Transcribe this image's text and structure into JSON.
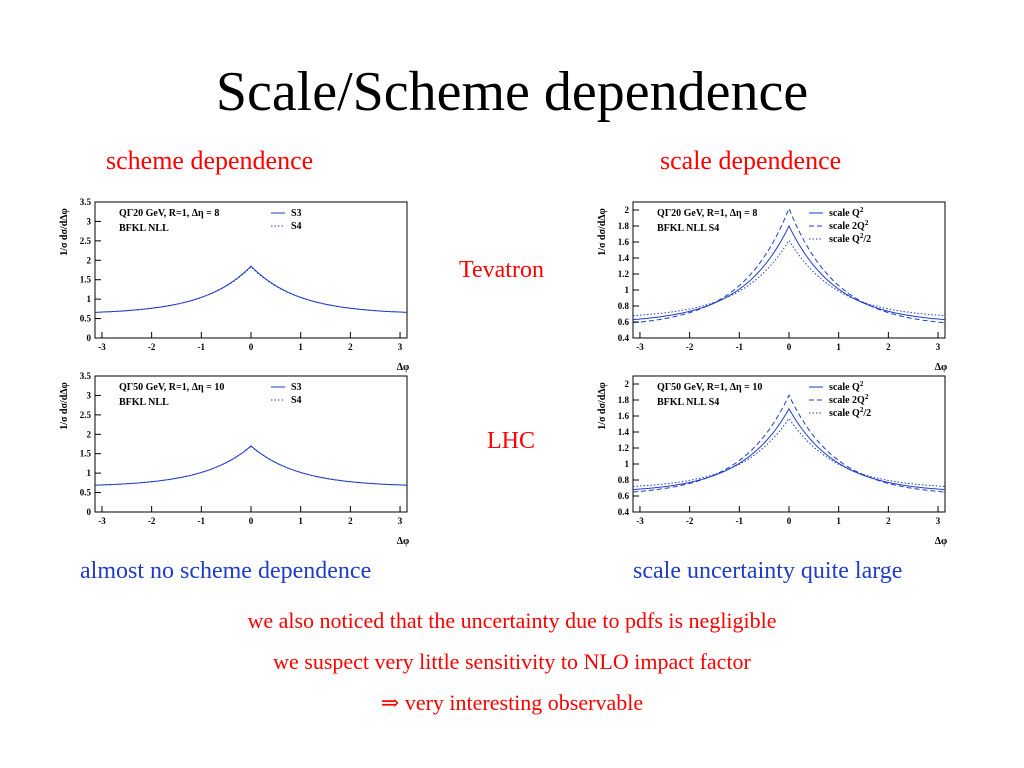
{
  "slide": {
    "title": "Scale/Scheme dependence",
    "left_heading": "scheme dependence",
    "right_heading": "scale dependence",
    "row_labels": [
      "Tevatron",
      "LHC"
    ],
    "left_conclusion": "almost no scheme dependence",
    "right_conclusion": "scale uncertainty quite large",
    "bottom_lines": [
      "we also noticed that the uncertainty due to pdfs is negligible",
      "we suspect very little sensitivity to NLO impact factor",
      "⇒ very interesting observable"
    ]
  },
  "colors": {
    "title": "#000000",
    "heading": "#ff0000",
    "conclusion": "#1f3cc8",
    "curve": "#1f3cc8"
  },
  "chart_data": [
    {
      "type": "line",
      "ylabel": "1/σ dσ/dΔφ",
      "xlabel": "Δφ",
      "xlim": [
        -3.14,
        3.14
      ],
      "ylim": [
        0,
        3.5
      ],
      "xticks": [
        "-3",
        "-2",
        "-1",
        "0",
        "1",
        "2",
        "3"
      ],
      "yticks": [
        "0",
        "0.5",
        "1",
        "1.5",
        "2",
        "2.5",
        "3",
        "3.5"
      ],
      "annotation": [
        "QΓ20 GeV, R=1, Δη = 8",
        "BFKL NLL"
      ],
      "legend_position": "top-right",
      "series": [
        {
          "name": "S3",
          "style": "solid",
          "peak": 1.85,
          "edge": 0.66
        },
        {
          "name": "S4",
          "style": "dotted",
          "peak": 1.83,
          "edge": 0.66
        }
      ]
    },
    {
      "type": "line",
      "ylabel": "1/σ dσ/dΔφ",
      "xlabel": "Δφ",
      "xlim": [
        -3.14,
        3.14
      ],
      "ylim": [
        0.4,
        2.1
      ],
      "xticks": [
        "-3",
        "-2",
        "-1",
        "0",
        "1",
        "2",
        "3"
      ],
      "yticks": [
        "0.4",
        "0.6",
        "0.8",
        "1",
        "1.2",
        "1.4",
        "1.6",
        "1.8",
        "2"
      ],
      "annotation": [
        "QΓ20 GeV, R=1, Δη = 8",
        "BFKL NLL S4"
      ],
      "legend_position": "top-right",
      "series": [
        {
          "name": "scale Q2",
          "style": "solid",
          "peak": 1.8,
          "edge": 0.63
        },
        {
          "name": "scale 2Q2",
          "style": "dashed",
          "peak": 2.02,
          "edge": 0.59
        },
        {
          "name": "scale Q2/2",
          "style": "dotted",
          "peak": 1.62,
          "edge": 0.68
        }
      ]
    },
    {
      "type": "line",
      "ylabel": "1/σ dσ/dΔφ",
      "xlabel": "Δφ",
      "xlim": [
        -3.14,
        3.14
      ],
      "ylim": [
        0,
        3.5
      ],
      "xticks": [
        "-3",
        "-2",
        "-1",
        "0",
        "1",
        "2",
        "3"
      ],
      "yticks": [
        "0",
        "0.5",
        "1",
        "1.5",
        "2",
        "2.5",
        "3",
        "3.5"
      ],
      "annotation": [
        "QΓ50 GeV, R=1, Δη = 10",
        "BFKL NLL"
      ],
      "legend_position": "top-right",
      "series": [
        {
          "name": "S3",
          "style": "solid",
          "peak": 1.7,
          "edge": 0.69
        },
        {
          "name": "S4",
          "style": "dotted",
          "peak": 1.69,
          "edge": 0.69
        }
      ]
    },
    {
      "type": "line",
      "ylabel": "1/σ dσ/dΔφ",
      "xlabel": "Δφ",
      "xlim": [
        -3.14,
        3.14
      ],
      "ylim": [
        0.4,
        2.1
      ],
      "xticks": [
        "-3",
        "-2",
        "-1",
        "0",
        "1",
        "2",
        "3"
      ],
      "yticks": [
        "0.4",
        "0.6",
        "0.8",
        "1",
        "1.2",
        "1.4",
        "1.6",
        "1.8",
        "2"
      ],
      "annotation": [
        "QΓ50 GeV, R=1, Δη = 10",
        "BFKL NLL S4"
      ],
      "legend_position": "top-right",
      "series": [
        {
          "name": "scale Q2",
          "style": "solid",
          "peak": 1.69,
          "edge": 0.68
        },
        {
          "name": "scale 2Q2",
          "style": "dashed",
          "peak": 1.86,
          "edge": 0.65
        },
        {
          "name": "scale Q2/2",
          "style": "dotted",
          "peak": 1.57,
          "edge": 0.72
        }
      ]
    }
  ]
}
